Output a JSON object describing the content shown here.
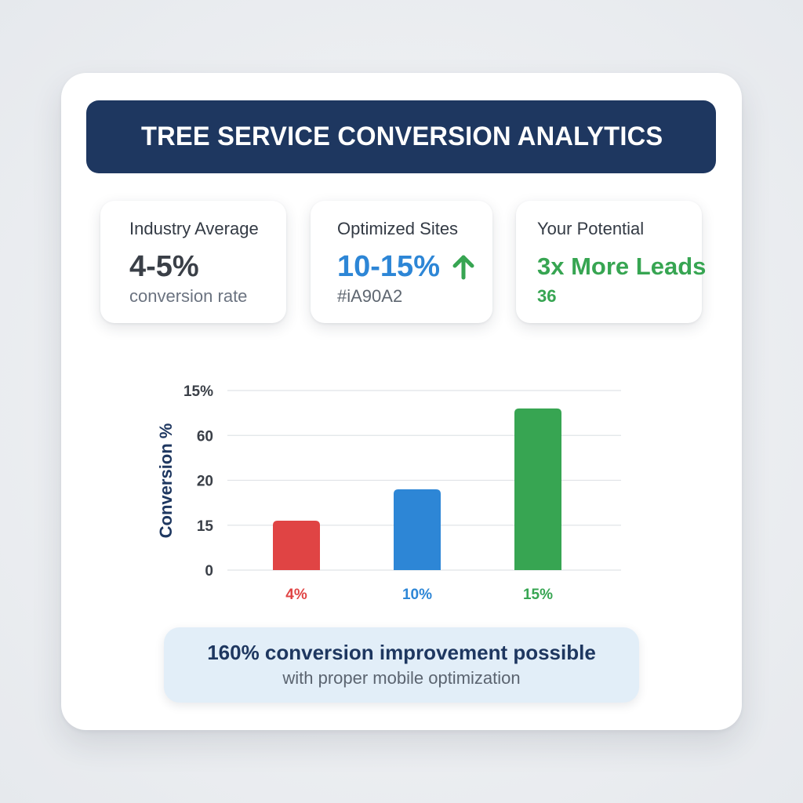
{
  "header": {
    "title": "TREE SERVICE CONVERSION ANALYTICS"
  },
  "stats": [
    {
      "label": "Industry Average",
      "value": "4-5%",
      "sub": "conversion rate"
    },
    {
      "label": "Optimized Sites",
      "value": "10-15%",
      "sub": "#iA90A2",
      "icon": "up-arrow-icon"
    },
    {
      "label": "Your Potential",
      "value": "3x More Leads",
      "sub": "36"
    }
  ],
  "colors": {
    "header": "#1e3760",
    "red": "#e04444",
    "blue": "#2d86d6",
    "green": "#37a552"
  },
  "chart_data": {
    "type": "bar",
    "ylabel": "Conversion %",
    "y_tick_labels": [
      "0",
      "15",
      "20",
      "60",
      "15%"
    ],
    "categories": [
      "4%",
      "10%",
      "15%"
    ],
    "values": [
      1.1,
      1.8,
      3.6
    ],
    "ylim": [
      0,
      4
    ],
    "bar_colors": [
      "#e04444",
      "#2d86d6",
      "#37a552"
    ],
    "grid": true
  },
  "footer": {
    "main": "160% conversion improvement possible",
    "sub": "with proper mobile optimization"
  }
}
